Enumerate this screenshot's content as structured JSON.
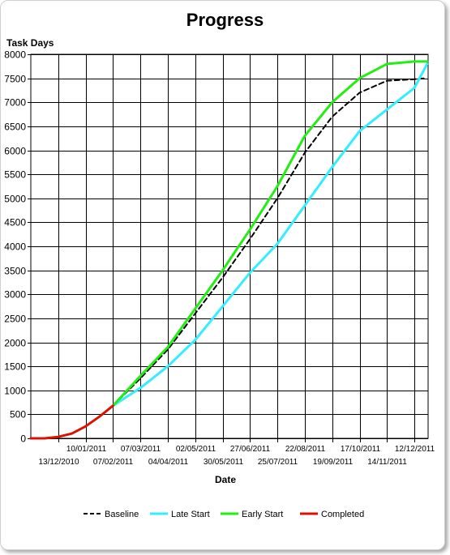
{
  "chart_data": {
    "type": "line",
    "title": "Progress",
    "xlabel": "Date",
    "ylabel": "Task Days",
    "ylim": [
      0,
      8000
    ],
    "yticks": [
      0,
      500,
      1000,
      1500,
      2000,
      2500,
      3000,
      3500,
      4000,
      4500,
      5000,
      5500,
      6000,
      6500,
      7000,
      7500,
      8000
    ],
    "xlim": [
      "2010-11-15",
      "2011-12-26"
    ],
    "xtick_labels": [
      {
        "date": "2010-12-13",
        "label": "13/12/2010"
      },
      {
        "date": "2011-01-10",
        "label": "10/01/2011"
      },
      {
        "date": "2011-02-07",
        "label": "07/02/2011"
      },
      {
        "date": "2011-03-07",
        "label": "07/03/2011"
      },
      {
        "date": "2011-04-04",
        "label": "04/04/2011"
      },
      {
        "date": "2011-05-02",
        "label": "02/05/2011"
      },
      {
        "date": "2011-05-30",
        "label": "30/05/2011"
      },
      {
        "date": "2011-06-27",
        "label": "27/06/2011"
      },
      {
        "date": "2011-07-25",
        "label": "25/07/2011"
      },
      {
        "date": "2011-08-22",
        "label": "22/08/2011"
      },
      {
        "date": "2011-09-19",
        "label": "19/09/2011"
      },
      {
        "date": "2011-10-17",
        "label": "17/10/2011"
      },
      {
        "date": "2011-11-14",
        "label": "14/11/2011"
      },
      {
        "date": "2011-12-12",
        "label": "12/12/2011"
      }
    ],
    "grid": true,
    "legend": "bottom",
    "series": [
      {
        "name": "Baseline",
        "color": "#000000",
        "style": "dashed",
        "points": [
          [
            "2011-02-07",
            680
          ],
          [
            "2011-03-07",
            1250
          ],
          [
            "2011-04-04",
            1850
          ],
          [
            "2011-05-02",
            2600
          ],
          [
            "2011-05-30",
            3350
          ],
          [
            "2011-06-27",
            4150
          ],
          [
            "2011-07-25",
            5000
          ],
          [
            "2011-08-22",
            5950
          ],
          [
            "2011-09-19",
            6700
          ],
          [
            "2011-10-17",
            7200
          ],
          [
            "2011-11-14",
            7450
          ],
          [
            "2011-12-12",
            7480
          ],
          [
            "2011-12-23",
            7500
          ]
        ]
      },
      {
        "name": "Late Start",
        "color": "#33eeff",
        "style": "solid",
        "points": [
          [
            "2011-02-07",
            680
          ],
          [
            "2011-03-07",
            1050
          ],
          [
            "2011-04-04",
            1500
          ],
          [
            "2011-05-02",
            2050
          ],
          [
            "2011-05-30",
            2750
          ],
          [
            "2011-06-27",
            3450
          ],
          [
            "2011-07-25",
            4050
          ],
          [
            "2011-08-22",
            4850
          ],
          [
            "2011-09-19",
            5650
          ],
          [
            "2011-10-17",
            6400
          ],
          [
            "2011-11-14",
            6850
          ],
          [
            "2011-12-12",
            7300
          ],
          [
            "2011-12-25",
            7800
          ]
        ]
      },
      {
        "name": "Early Start",
        "color": "#22ee11",
        "style": "solid",
        "points": [
          [
            "2011-02-07",
            680
          ],
          [
            "2011-03-07",
            1300
          ],
          [
            "2011-04-04",
            1900
          ],
          [
            "2011-05-02",
            2700
          ],
          [
            "2011-05-30",
            3500
          ],
          [
            "2011-06-27",
            4350
          ],
          [
            "2011-07-25",
            5250
          ],
          [
            "2011-08-22",
            6300
          ],
          [
            "2011-09-19",
            7000
          ],
          [
            "2011-10-17",
            7500
          ],
          [
            "2011-11-14",
            7800
          ],
          [
            "2011-12-12",
            7850
          ],
          [
            "2011-12-25",
            7850
          ]
        ]
      },
      {
        "name": "Completed",
        "color": "#dd1100",
        "style": "solid",
        "points": [
          [
            "2010-11-15",
            0
          ],
          [
            "2010-11-29",
            0
          ],
          [
            "2010-12-13",
            30
          ],
          [
            "2010-12-27",
            100
          ],
          [
            "2011-01-10",
            250
          ],
          [
            "2011-01-24",
            450
          ],
          [
            "2011-02-07",
            680
          ]
        ]
      }
    ]
  }
}
